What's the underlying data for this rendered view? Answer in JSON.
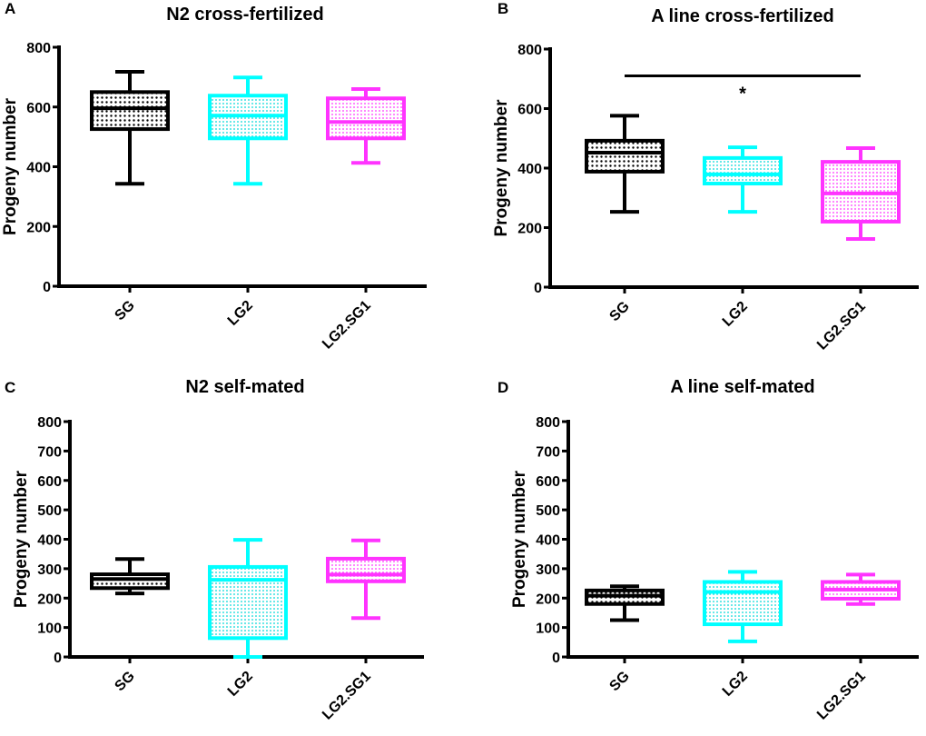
{
  "colors": {
    "SG": "#000000",
    "LG2": "#00FFFF",
    "LG2.SG1": "#FF33FF"
  },
  "chart_data": [
    {
      "type": "box",
      "panel": "A",
      "title": "N2 cross-fertilized",
      "ylabel": "Progeny number",
      "ylim": [
        0,
        800
      ],
      "yticks": [
        0,
        200,
        400,
        600,
        800
      ],
      "categories": [
        "SG",
        "LG2",
        "LG2.SG1"
      ],
      "boxes": [
        {
          "min": 343,
          "q1": 526,
          "median": 596,
          "q3": 650,
          "max": 718
        },
        {
          "min": 343,
          "q1": 495,
          "median": 571,
          "q3": 638,
          "max": 699
        },
        {
          "min": 413,
          "q1": 495,
          "median": 550,
          "q3": 629,
          "max": 660
        }
      ]
    },
    {
      "type": "box",
      "panel": "B",
      "title": "A line cross-fertilized",
      "ylabel": "Progeny number",
      "ylim": [
        0,
        800
      ],
      "yticks": [
        0,
        200,
        400,
        600,
        800
      ],
      "categories": [
        "SG",
        "LG2",
        "LG2.SG1"
      ],
      "boxes": [
        {
          "min": 253,
          "q1": 388,
          "median": 452,
          "q3": 492,
          "max": 576
        },
        {
          "min": 253,
          "q1": 348,
          "median": 379,
          "q3": 434,
          "max": 470
        },
        {
          "min": 162,
          "q1": 220,
          "median": 315,
          "q3": 421,
          "max": 467
        }
      ],
      "significance": {
        "from": "SG",
        "to": "LG2.SG1",
        "label": "*",
        "y": 710
      }
    },
    {
      "type": "box",
      "panel": "C",
      "title": "N2 self-mated",
      "ylabel": "Progeny number",
      "ylim": [
        0,
        800
      ],
      "yticks": [
        0,
        100,
        200,
        300,
        400,
        500,
        600,
        700,
        800
      ],
      "categories": [
        "SG",
        "LG2",
        "LG2.SG1"
      ],
      "boxes": [
        {
          "min": 216,
          "q1": 234,
          "median": 265,
          "q3": 281,
          "max": 333
        },
        {
          "min": 0,
          "q1": 64,
          "median": 262,
          "q3": 306,
          "max": 398
        },
        {
          "min": 132,
          "q1": 257,
          "median": 280,
          "q3": 334,
          "max": 396
        }
      ]
    },
    {
      "type": "box",
      "panel": "D",
      "title": "A line self-mated",
      "ylabel": "Progeny number",
      "ylim": [
        0,
        800
      ],
      "yticks": [
        0,
        100,
        200,
        300,
        400,
        500,
        600,
        700,
        800
      ],
      "categories": [
        "SG",
        "LG2",
        "LG2.SG1"
      ],
      "boxes": [
        {
          "min": 125,
          "q1": 180,
          "median": 208,
          "q3": 226,
          "max": 240
        },
        {
          "min": 53,
          "q1": 111,
          "median": 221,
          "q3": 255,
          "max": 289
        },
        {
          "min": 180,
          "q1": 198,
          "median": 229,
          "q3": 255,
          "max": 280
        }
      ]
    }
  ]
}
